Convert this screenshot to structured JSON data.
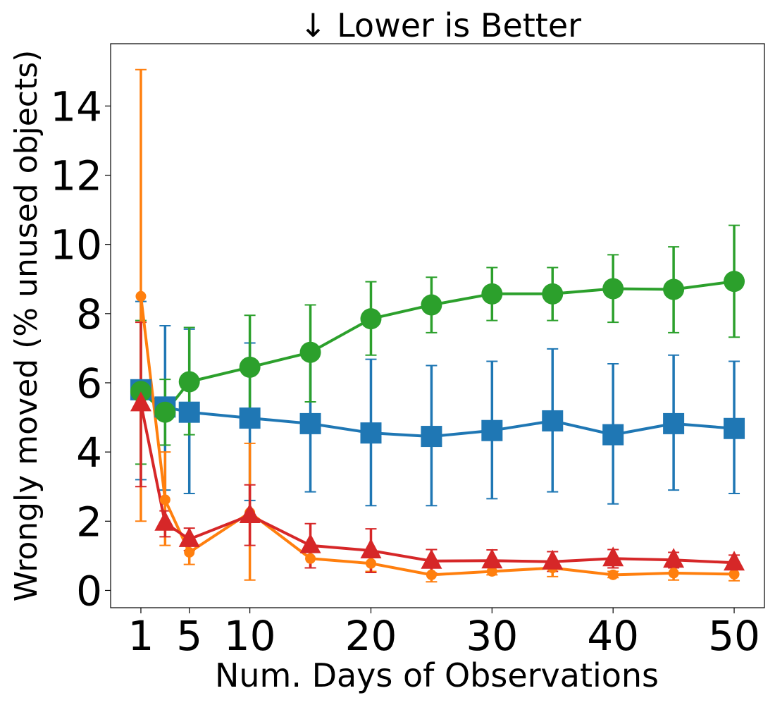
{
  "chart_data": {
    "type": "line",
    "title": "↓  Lower is Better",
    "xlabel": "Num. Days of Observations",
    "ylabel": "Wrongly moved (% unused objects)",
    "xlim": [
      -1.5,
      52.5
    ],
    "ylim": [
      -0.5,
      15.8
    ],
    "xticks": [
      1,
      5,
      10,
      20,
      30,
      40,
      50
    ],
    "yticks": [
      0,
      2,
      4,
      6,
      8,
      10,
      12,
      14
    ],
    "x": [
      1,
      3,
      5,
      10,
      15,
      20,
      25,
      30,
      35,
      40,
      45,
      50
    ],
    "series": [
      {
        "name": "blue",
        "color": "#1f77b4",
        "marker": "square",
        "values": [
          5.8,
          5.3,
          5.15,
          4.98,
          4.82,
          4.55,
          4.45,
          4.62,
          4.9,
          4.5,
          4.82,
          4.68
        ],
        "err_low": [
          3.2,
          2.9,
          2.8,
          2.6,
          2.85,
          2.45,
          2.45,
          2.65,
          2.85,
          2.5,
          2.9,
          2.8
        ],
        "err_high": [
          8.35,
          7.65,
          7.55,
          7.15,
          6.95,
          6.68,
          6.5,
          6.62,
          6.98,
          6.55,
          6.8,
          6.62
        ]
      },
      {
        "name": "green",
        "color": "#2ca02c",
        "marker": "circle",
        "values": [
          5.75,
          5.15,
          6.03,
          6.45,
          6.88,
          7.85,
          8.25,
          8.57,
          8.57,
          8.72,
          8.7,
          8.93
        ],
        "err_low": [
          3.65,
          4.2,
          4.5,
          4.92,
          5.45,
          6.8,
          7.45,
          7.8,
          7.8,
          7.75,
          7.45,
          7.32
        ],
        "err_high": [
          7.8,
          6.1,
          7.6,
          7.95,
          8.25,
          8.92,
          9.05,
          9.33,
          9.33,
          9.7,
          9.93,
          10.55
        ]
      },
      {
        "name": "orange",
        "color": "#ff7f0e",
        "marker": "circle-small",
        "values": [
          8.5,
          2.62,
          1.1,
          2.25,
          0.92,
          0.78,
          0.45,
          0.55,
          0.65,
          0.45,
          0.5,
          0.47
        ],
        "err_low": [
          2.0,
          1.3,
          0.75,
          0.3,
          0.65,
          0.55,
          0.25,
          0.45,
          0.4,
          0.37,
          0.3,
          0.28
        ],
        "err_high": [
          15.05,
          4.0,
          1.55,
          4.25,
          1.3,
          1.0,
          0.65,
          0.7,
          0.85,
          0.55,
          0.7,
          0.66
        ]
      },
      {
        "name": "red",
        "color": "#d62728",
        "marker": "triangle",
        "values": [
          5.4,
          1.95,
          1.48,
          2.17,
          1.3,
          1.15,
          0.85,
          0.86,
          0.83,
          0.92,
          0.88,
          0.8
        ],
        "err_low": [
          3.0,
          1.55,
          1.15,
          1.3,
          0.65,
          0.52,
          0.5,
          0.55,
          0.55,
          0.65,
          0.65,
          0.6
        ],
        "err_high": [
          7.75,
          2.3,
          1.8,
          3.05,
          1.93,
          1.78,
          1.18,
          1.17,
          1.12,
          1.18,
          1.1,
          1.02
        ]
      }
    ]
  }
}
